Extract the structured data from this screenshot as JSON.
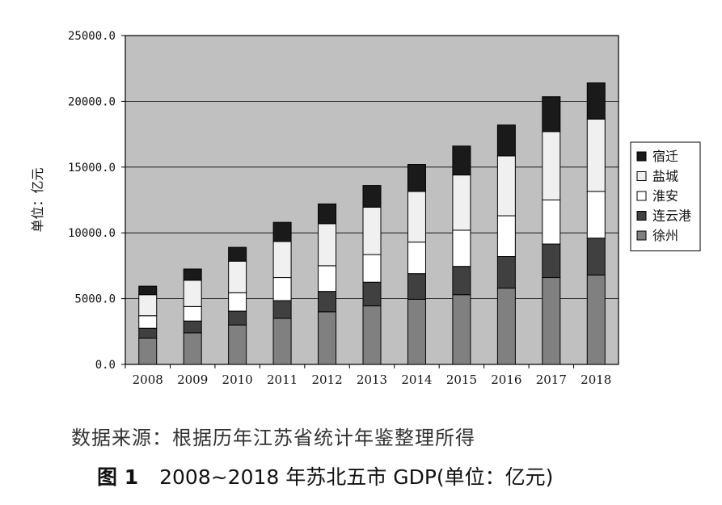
{
  "chart_data": {
    "type": "bar",
    "stacked": true,
    "categories": [
      "2008",
      "2009",
      "2010",
      "2011",
      "2012",
      "2013",
      "2014",
      "2015",
      "2016",
      "2017",
      "2018"
    ],
    "series": [
      {
        "name": "徐州",
        "color": "#808080",
        "values": [
          2000,
          2400,
          3000,
          3500,
          4000,
          4450,
          4950,
          5300,
          5800,
          6600,
          6800
        ]
      },
      {
        "name": "连云港",
        "color": "#404040",
        "values": [
          750,
          900,
          1050,
          1350,
          1550,
          1800,
          1950,
          2150,
          2400,
          2550,
          2800
        ]
      },
      {
        "name": "淮安",
        "color": "#ffffff",
        "values": [
          950,
          1100,
          1400,
          1750,
          1950,
          2100,
          2400,
          2750,
          3100,
          3350,
          3550
        ]
      },
      {
        "name": "盐城",
        "color": "#f0f0f0",
        "values": [
          1600,
          2000,
          2400,
          2750,
          3200,
          3600,
          3850,
          4200,
          4550,
          5200,
          5500
        ]
      },
      {
        "name": "宿迁",
        "color": "#1a1a1a",
        "values": [
          650,
          850,
          1050,
          1450,
          1500,
          1650,
          2050,
          2200,
          2350,
          2650,
          2750
        ]
      }
    ],
    "ylabel": "单位：亿元",
    "ylim": [
      0,
      25000
    ],
    "yticks": [
      "0.0",
      "5000.0",
      "10000.0",
      "15000.0",
      "20000.0",
      "25000.0"
    ],
    "ytick_values": [
      0,
      5000,
      10000,
      15000,
      20000,
      25000
    ],
    "grid": true,
    "plot_background": "#c0c0c0",
    "legend_placement": "right",
    "legend_order": [
      "宿迁",
      "盐城",
      "淮安",
      "连云港",
      "徐州"
    ]
  },
  "source_note": "数据来源：根据历年江苏省统计年鉴整理所得",
  "caption": {
    "figure_number": "图 1",
    "title": "2008~2018 年苏北五市 GDP(单位：亿元)"
  }
}
